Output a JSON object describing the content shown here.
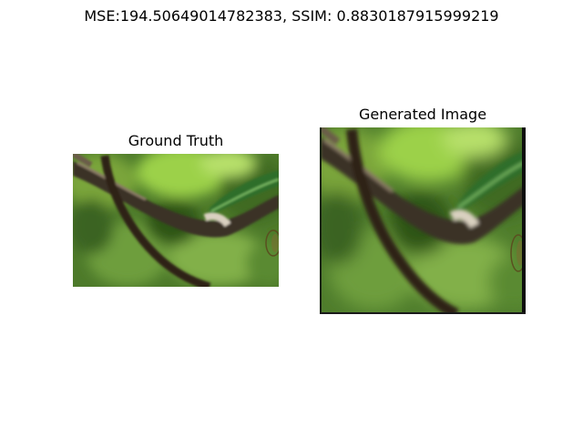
{
  "figure": {
    "title": "MSE:194.50649014782383, SSIM: 0.8830187915999219"
  },
  "panels": [
    {
      "title": "Ground Truth",
      "image_subject": "tree branch against blurred green foliage"
    },
    {
      "title": "Generated Image",
      "image_subject": "tree branch against blurred green foliage (generated reconstruction)"
    }
  ]
}
